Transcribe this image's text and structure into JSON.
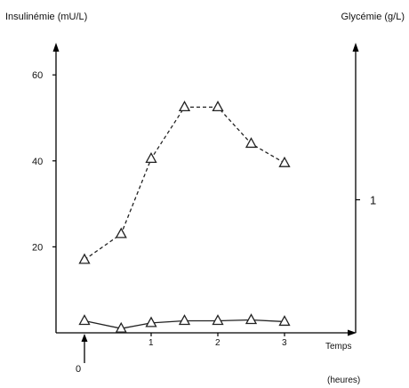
{
  "chart_data": {
    "type": "line",
    "ylabel_left": "Insulinémie (mU/L)",
    "ylabel_right": "Glycémie (g/L)",
    "xlabel": "Temps",
    "xlabel_unit": "(heures)",
    "x_start_marker": "0",
    "xlim": [
      -0.45,
      3.35
    ],
    "ylim_left": [
      0,
      65
    ],
    "ylim_right": [
      0,
      2.1
    ],
    "x_ticks": [
      1,
      2,
      3
    ],
    "y_ticks_left": [
      20,
      40,
      60
    ],
    "y_ticks_right": [
      1
    ],
    "series": [
      {
        "axis": "left",
        "style": "dashed",
        "marker": "triangle",
        "x": [
          0,
          0.55,
          1.0,
          1.5,
          2.0,
          2.5,
          3.0
        ],
        "y": [
          17,
          23,
          40.5,
          52.5,
          52.5,
          44,
          39.5
        ]
      },
      {
        "axis": "left",
        "style": "solid",
        "marker": "triangle",
        "x": [
          0,
          0.55,
          1.0,
          1.5,
          2.0,
          2.5,
          3.0
        ],
        "y": [
          2.8,
          1.0,
          2.3,
          2.8,
          2.8,
          3.0,
          2.6
        ]
      }
    ]
  }
}
